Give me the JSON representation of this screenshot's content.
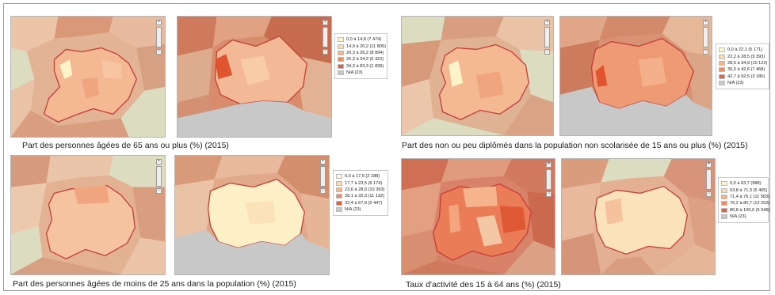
{
  "panels": [
    {
      "caption": "Part des personnes âgées de 65 ans ou plus (%) (2015)",
      "legend": [
        {
          "label": "0,0 à 14,8 (7 474)",
          "color": "#fdf6cf"
        },
        {
          "label": "14,9 à 20,2 (11 805)",
          "color": "#fbd9ab"
        },
        {
          "label": "20,3 à 26,2 (8 894)",
          "color": "#f6b585"
        },
        {
          "label": "26,3 à 34,2 (5 322)",
          "color": "#ee8c64"
        },
        {
          "label": "34,3 à 83,3 (1 839)",
          "color": "#e5603f"
        },
        {
          "label": "N/A (23)",
          "color": "#c8c8c8"
        }
      ]
    },
    {
      "caption": "Part des non ou peu diplômés dans la population non scolarisée de 15 ans ou plus (%) (2015)",
      "legend": [
        {
          "label": "0,0 à 22,1 (5 171)",
          "color": "#fdf6cf"
        },
        {
          "label": "22,2 à 28,5 (9 393)",
          "color": "#fbd9ab"
        },
        {
          "label": "28,6 à 34,9 (10 122)",
          "color": "#f6b585"
        },
        {
          "label": "35,0 à 42,6 (7 468)",
          "color": "#ee8c64"
        },
        {
          "label": "42,7 à 92,5 (3 180)",
          "color": "#e5603f"
        },
        {
          "label": "N/A (23)",
          "color": "#c8c8c8"
        }
      ]
    },
    {
      "caption": "Part des personnes âgées de moins de 25 ans dans la population (%) (2015)",
      "legend": [
        {
          "label": "0,0 à 17,6 (2 188)",
          "color": "#fdf6cf"
        },
        {
          "label": "17,7 à 23,5 (6 174)",
          "color": "#fbd9ab"
        },
        {
          "label": "23,6 à 28,0 (10 393)",
          "color": "#f6b585"
        },
        {
          "label": "28,1 à 32,3 (11 132)",
          "color": "#ee8c64"
        },
        {
          "label": "32,4 à 67,9 (5 447)",
          "color": "#e5603f"
        },
        {
          "label": "N/A (23)",
          "color": "#c8c8c8"
        }
      ]
    },
    {
      "caption": "Taux d'activité des 15 à 64 ans (%) (2015)",
      "legend": [
        {
          "label": "0,0 à 63,7 (988)",
          "color": "#fdf6cf"
        },
        {
          "label": "63,8 à 71,3 (5 465)",
          "color": "#fbd9ab"
        },
        {
          "label": "71,4 à 76,1 (11 583)",
          "color": "#f6b585"
        },
        {
          "label": "76,2 à 80,7 (12 252)",
          "color": "#ee8c64"
        },
        {
          "label": "80,8 à 100,0 (5 046)",
          "color": "#e5603f"
        },
        {
          "label": "N/A (23)",
          "color": "#c8c8c8"
        }
      ]
    }
  ],
  "map_controls": {
    "zoom_in": "+",
    "zoom_out": "−"
  }
}
